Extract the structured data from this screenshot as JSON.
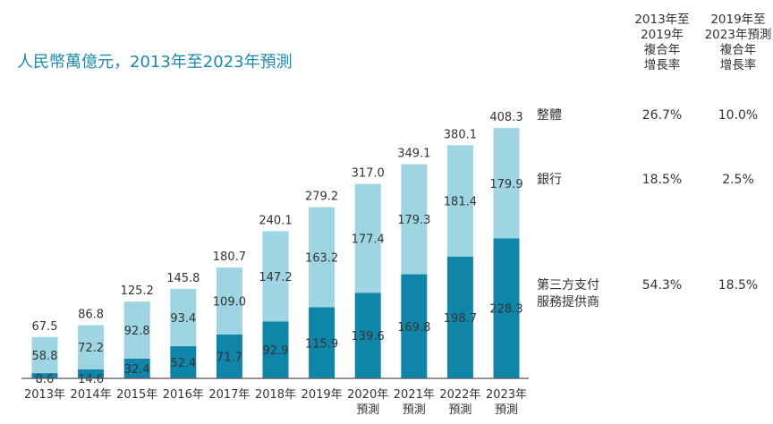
{
  "chart_data": {
    "type": "bar",
    "stacked": true,
    "title": "人民幣萬億元，2013年至2023年預測",
    "categories": [
      "2013年",
      "2014年",
      "2015年",
      "2016年",
      "2017年",
      "2018年",
      "2019年",
      "2020年\n預測",
      "2021年\n預測",
      "2022年\n預測",
      "2023年\n預測"
    ],
    "series": [
      {
        "name": "第三方支付服務提供商",
        "color": "#0f86a9",
        "values": [
          8.6,
          14.6,
          32.4,
          52.4,
          71.7,
          92.9,
          115.9,
          139.6,
          169.8,
          198.7,
          228.3
        ]
      },
      {
        "name": "銀行",
        "color": "#9dd5e2",
        "values": [
          58.8,
          72.2,
          92.8,
          93.4,
          109.0,
          147.2,
          163.2,
          177.4,
          179.3,
          181.4,
          179.9
        ]
      }
    ],
    "totals": [
      67.5,
      86.8,
      125.2,
      145.8,
      180.7,
      240.1,
      279.2,
      317.0,
      349.1,
      380.1,
      408.3
    ],
    "ylim": [
      0,
      408.3
    ],
    "grid": false
  },
  "table": {
    "headers": [
      "2013年至\n2019年\n複合年\n增長率",
      "2019年至\n2023年預測\n複合年\n增長率"
    ],
    "rows": [
      {
        "label": "整體",
        "values": [
          "26.7%",
          "10.0%"
        ]
      },
      {
        "label": "銀行",
        "values": [
          "18.5%",
          "2.5%"
        ]
      },
      {
        "label": "第三方支付\n服務提供商",
        "values": [
          "54.3%",
          "18.5%"
        ]
      }
    ]
  }
}
